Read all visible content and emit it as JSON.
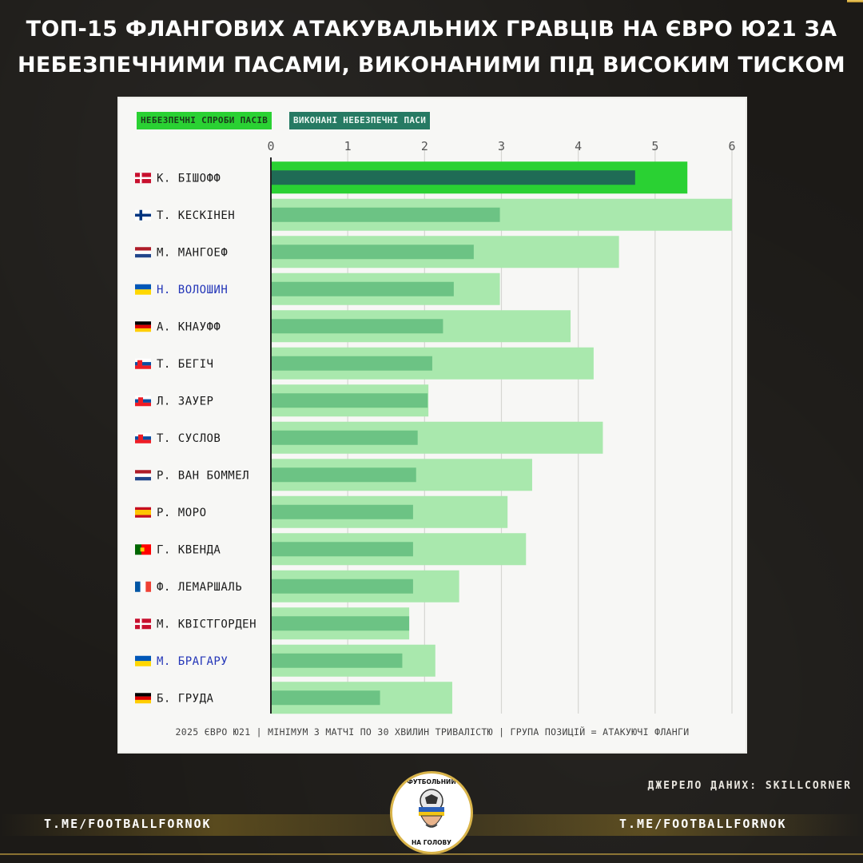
{
  "title_line1": "ТОП-15 ФЛАНГОВИХ АТАКУВАЛЬНИХ ГРАВЦІВ НА ЄВРО Ю21 ЗА",
  "title_line2": "НЕБЕЗПЕЧНИМИ ПАСАМИ, ВИКОНАНИМИ ПІД ВИСОКИМ ТИСКОМ",
  "legend": {
    "attempts": "НЕБЕЗПЕЧНІ СПРОБИ ПАСІВ",
    "completed": "ВИКОНАНІ НЕБЕЗПЕЧНІ ПАСИ"
  },
  "footnote": "2025 ЄВРО Ю21 | МІНІМУМ 3 МАТЧІ ПО 30 ХВИЛИН ТРИВАЛІСТЮ | ГРУПА ПОЗИЦІЙ = АТАКУЮЧІ ФЛАНГИ",
  "source": "ДЖЕРЕЛО ДАНИХ: SKILLCORNER",
  "handle_left": "T.ME/FOOTBALLFORNOK",
  "handle_right": "T.ME/FOOTBALLFORNOK",
  "logo": {
    "top_text": "ФУТБОЛЬНИЙ",
    "bottom_text": "НА ГОЛОВУ"
  },
  "colors": {
    "attempts_highlight": "#2ad133",
    "completed_highlight": "#1f6b55",
    "attempts": "#a9e8ad",
    "completed": "#6cc384",
    "ukraine_label": "#2436b8",
    "default_label": "#1a1a1a",
    "gold": "#e6bd4c"
  },
  "chart_data": {
    "type": "bar",
    "orientation": "horizontal",
    "xlim": [
      0,
      6
    ],
    "xticks": [
      "0",
      "1",
      "2",
      "3",
      "4",
      "5",
      "6"
    ],
    "grid": true,
    "legend_position": "top-left",
    "series": [
      {
        "name": "НЕБЕЗПЕЧНІ СПРОБИ ПАСІВ",
        "values": [
          5.42,
          6.0,
          4.53,
          2.98,
          3.9,
          4.2,
          2.05,
          4.32,
          3.4,
          3.08,
          3.32,
          2.45,
          1.8,
          2.14,
          2.36
        ]
      },
      {
        "name": "ВИКОНАНІ НЕБЕЗПЕЧНІ ПАСИ",
        "values": [
          4.74,
          2.98,
          2.64,
          2.38,
          2.24,
          2.1,
          2.04,
          1.91,
          1.89,
          1.85,
          1.85,
          1.85,
          1.8,
          1.71,
          1.42
        ]
      }
    ],
    "categories": [
      {
        "name": "К. БІШОФФ",
        "flag": "denmark",
        "ukraine": false
      },
      {
        "name": "Т. КЕСКІНЕН",
        "flag": "finland",
        "ukraine": false
      },
      {
        "name": "М. МАНГОЕФ",
        "flag": "netherlands",
        "ukraine": false
      },
      {
        "name": "Н. ВОЛОШИН",
        "flag": "ukraine",
        "ukraine": true
      },
      {
        "name": "А. КНАУФФ",
        "flag": "germany",
        "ukraine": false
      },
      {
        "name": "Т. БЕГІЧ",
        "flag": "slovenia",
        "ukraine": false
      },
      {
        "name": "Л. ЗАУЕР",
        "flag": "slovakia",
        "ukraine": false
      },
      {
        "name": "Т. СУСЛОВ",
        "flag": "slovakia",
        "ukraine": false
      },
      {
        "name": "Р. ВАН БОММЕЛ",
        "flag": "netherlands",
        "ukraine": false
      },
      {
        "name": "Р. МОРО",
        "flag": "spain",
        "ukraine": false
      },
      {
        "name": "Г. КВЕНДА",
        "flag": "portugal",
        "ukraine": false
      },
      {
        "name": "Ф. ЛЕМАРШАЛЬ",
        "flag": "france",
        "ukraine": false
      },
      {
        "name": "М. КВІСТГОРДЕН",
        "flag": "denmark",
        "ukraine": false
      },
      {
        "name": "М. БРАГАРУ",
        "flag": "ukraine",
        "ukraine": true
      },
      {
        "name": "Б. ГРУДА",
        "flag": "germany",
        "ukraine": false
      }
    ]
  }
}
